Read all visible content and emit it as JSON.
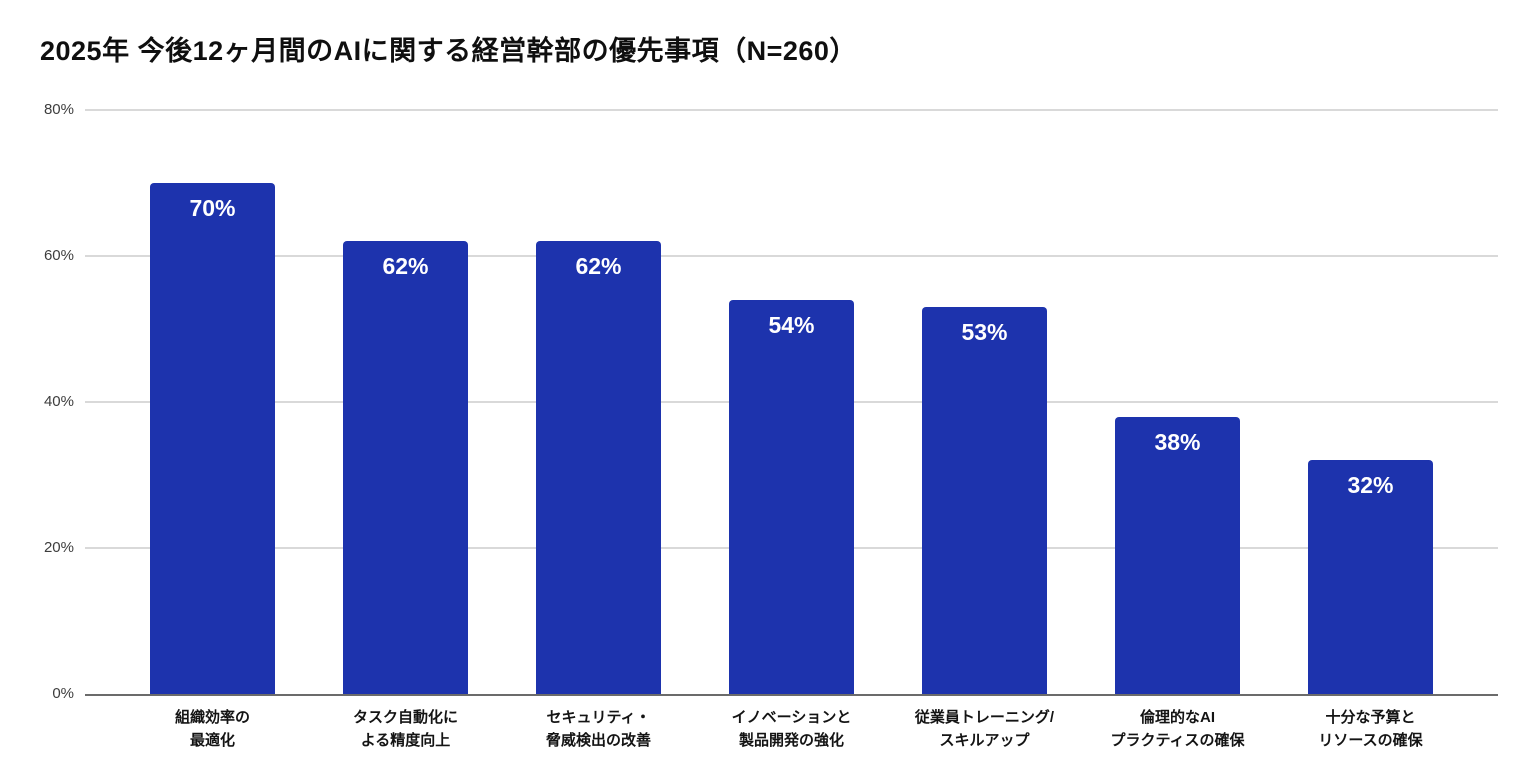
{
  "chart_data": {
    "type": "bar",
    "title": "2025年 今後12ヶ月間のAIに関する経営幹部の優先事項（N=260）",
    "sample_size_note": "N=260",
    "categories": [
      [
        "組織効率の",
        "最適化"
      ],
      [
        "タスク自動化に",
        "よる精度向上"
      ],
      [
        "セキュリティ・",
        "脅威検出の改善"
      ],
      [
        "イノベーションと",
        "製品開発の強化"
      ],
      [
        "従業員トレーニング/",
        "スキルアップ"
      ],
      [
        "倫理的なAI",
        "プラクティスの確保"
      ],
      [
        "十分な予算と",
        "リソースの確保"
      ]
    ],
    "values": [
      70,
      62,
      62,
      54,
      53,
      38,
      32
    ],
    "value_labels": [
      "70%",
      "62%",
      "62%",
      "54%",
      "53%",
      "38%",
      "32%"
    ],
    "xlabel": "",
    "ylabel": "",
    "ylim": [
      0,
      80
    ],
    "yticks": [
      {
        "label": "80%",
        "value": 80
      },
      {
        "label": "60%",
        "value": 60
      },
      {
        "label": "40%",
        "value": 40
      },
      {
        "label": "20%",
        "value": 20
      },
      {
        "label": "0%",
        "value": 0
      }
    ],
    "grid": true,
    "legend": null,
    "colors": {
      "bar": "#1d33ad",
      "value_label": "#ffffff",
      "title": "#0f0f0f",
      "axis_tick_label": "#3d3d3d",
      "category_label": "#141414",
      "gridline": "#d9d9d9",
      "baseline": "#6b6b6b",
      "background": "#ffffff"
    }
  }
}
